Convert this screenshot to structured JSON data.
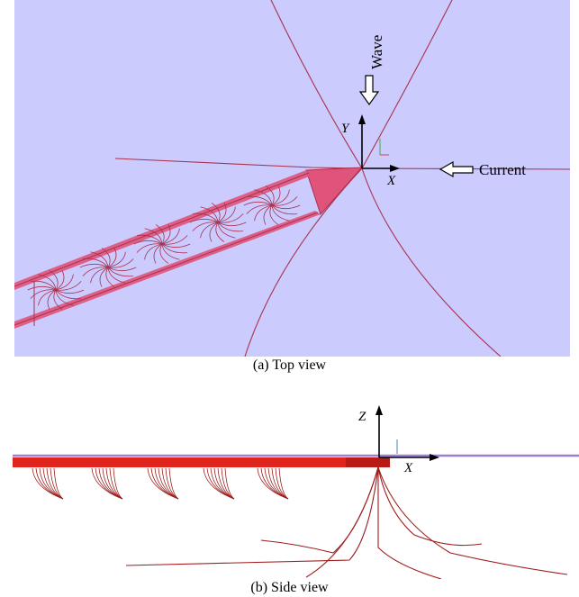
{
  "top": {
    "caption": "(a)  Top view",
    "wave_label": "Wave",
    "current_label": "Current",
    "axis_x": "X",
    "axis_y": "Y"
  },
  "side": {
    "caption": "(b)  Side view",
    "axis_x": "X",
    "axis_z": "Z"
  },
  "colors": {
    "sea": "#cbcbfd",
    "line": "#a8324f",
    "hull": "#e0537a",
    "hull_dark": "#c23c60",
    "side_net": "#e0251f",
    "side_net_dark": "#b81a14",
    "side_lines": "#9e1d1d"
  }
}
